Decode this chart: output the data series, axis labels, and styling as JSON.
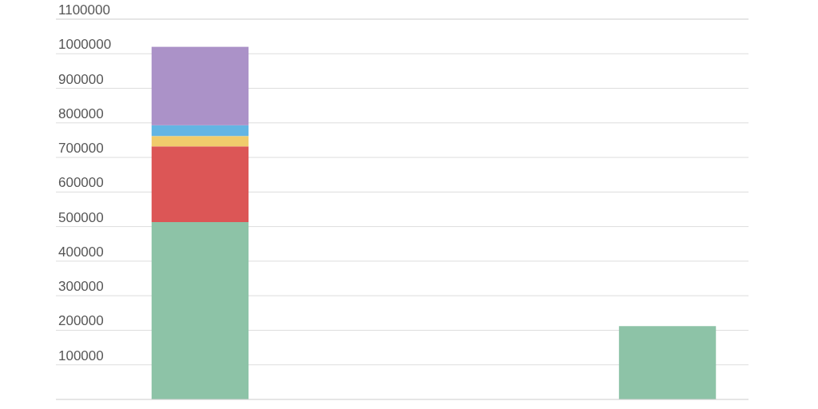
{
  "chart_data": {
    "type": "bar",
    "stacked": true,
    "categories": [
      null,
      null,
      null
    ],
    "series": [
      {
        "color": "#8dc3a7",
        "values": [
          513000,
          null,
          212000
        ]
      },
      {
        "color": "#dc5656",
        "values": [
          219000,
          null,
          null
        ]
      },
      {
        "color": "#f0cc6c",
        "values": [
          30000,
          null,
          null
        ]
      },
      {
        "color": "#63b5e3",
        "values": [
          31000,
          null,
          null
        ]
      },
      {
        "color": "#ab92c8",
        "values": [
          227000,
          null,
          null
        ]
      }
    ],
    "ylim": [
      0,
      1100000
    ],
    "yticks": [
      100000,
      200000,
      300000,
      400000,
      500000,
      600000,
      700000,
      800000,
      900000,
      1000000,
      1100000
    ],
    "grid": "y",
    "tick_labels": "y"
  }
}
